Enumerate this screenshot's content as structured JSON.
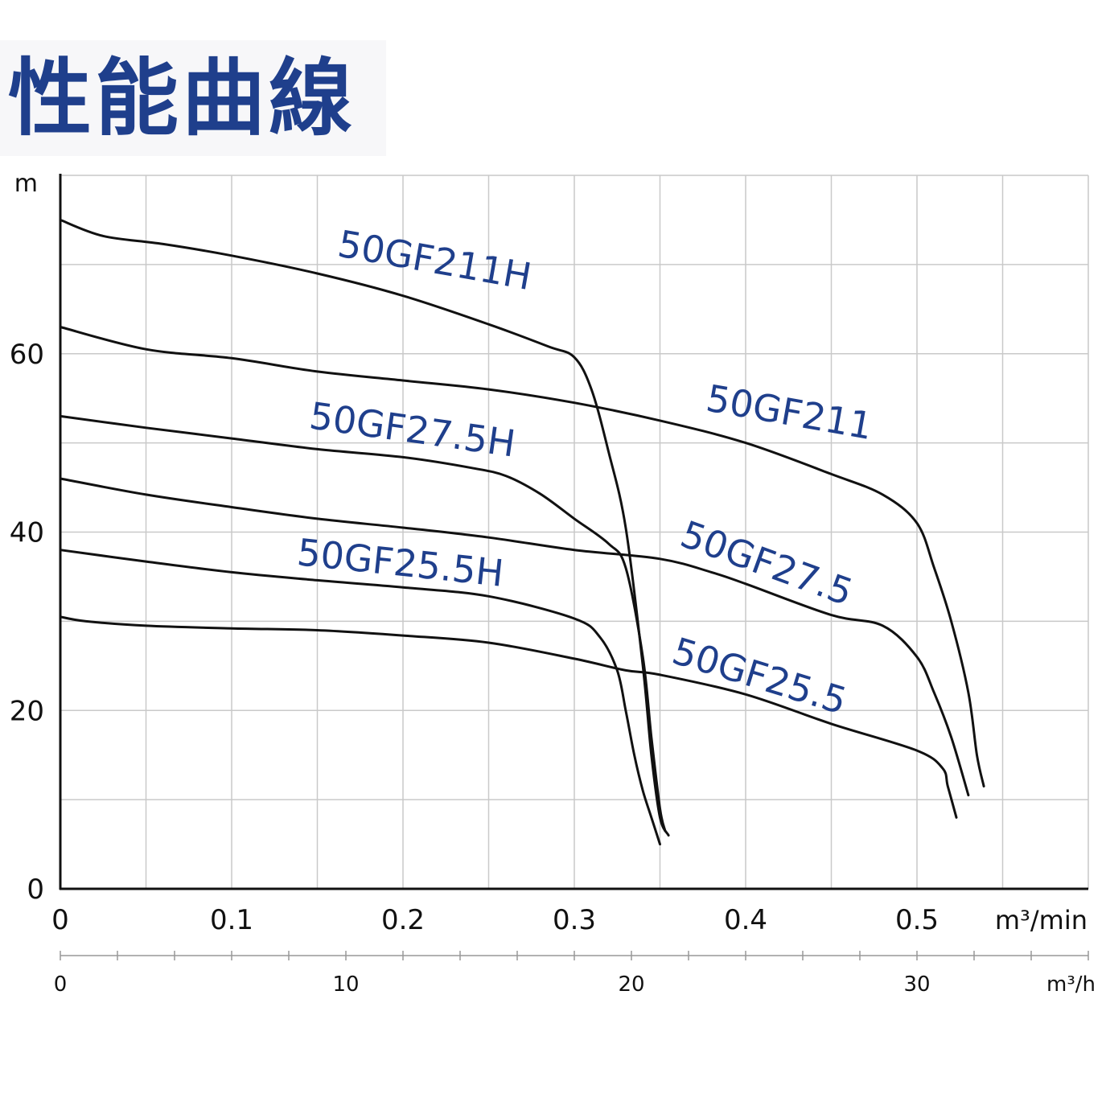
{
  "page": {
    "title": "性能曲線"
  },
  "chart_data": {
    "type": "line",
    "title": "性能曲線",
    "ylabel": "m",
    "xlabel": "m³/min",
    "x2label": "m³/h",
    "xlim": [
      0,
      0.6
    ],
    "ylim": [
      0,
      80
    ],
    "x_ticks": [
      "0",
      "0.1",
      "0.2",
      "0.3",
      "0.4",
      "0.5"
    ],
    "y_ticks": [
      "0",
      "20",
      "40",
      "60"
    ],
    "x2_ticks": [
      "0",
      "10",
      "20",
      "30"
    ],
    "grid": true,
    "colors": {
      "curve": "#111111",
      "label": "#1f3f8c",
      "grid": "#c9c9c9",
      "title": "#1f3f8c"
    },
    "series": [
      {
        "name": "50GF211H",
        "x": [
          0,
          0.025,
          0.06,
          0.1,
          0.15,
          0.2,
          0.25,
          0.285,
          0.3,
          0.31,
          0.32,
          0.33,
          0.34,
          0.345,
          0.35,
          0.355
        ],
        "y": [
          75,
          73.2,
          72.3,
          71,
          69,
          66.5,
          63.3,
          60.8,
          59.6,
          56,
          49,
          40.5,
          25,
          15,
          8,
          6
        ]
      },
      {
        "name": "50GF211",
        "x": [
          0,
          0.05,
          0.1,
          0.15,
          0.2,
          0.25,
          0.3,
          0.35,
          0.4,
          0.45,
          0.48,
          0.5,
          0.51,
          0.52,
          0.53,
          0.535,
          0.539
        ],
        "y": [
          63,
          60.5,
          59.5,
          58,
          57,
          56,
          54.5,
          52.5,
          50,
          46.5,
          44.2,
          41,
          36,
          30,
          22,
          15,
          11.5
        ]
      },
      {
        "name": "50GF27.5H",
        "x": [
          0,
          0.05,
          0.1,
          0.15,
          0.2,
          0.24,
          0.26,
          0.28,
          0.3,
          0.32,
          0.33,
          0.34,
          0.345,
          0.35,
          0.353
        ],
        "y": [
          53,
          51.7,
          50.5,
          49.3,
          48.4,
          47.2,
          46.3,
          44.3,
          41.5,
          38.7,
          36,
          26,
          17,
          9,
          6.5
        ]
      },
      {
        "name": "50GF27.5",
        "x": [
          0,
          0.05,
          0.1,
          0.15,
          0.2,
          0.25,
          0.3,
          0.35,
          0.38,
          0.4,
          0.45,
          0.48,
          0.5,
          0.51,
          0.52,
          0.53
        ],
        "y": [
          46,
          44.2,
          42.8,
          41.5,
          40.5,
          39.4,
          38,
          37,
          35.5,
          34.2,
          30.7,
          29.5,
          26,
          22,
          17,
          10.5
        ]
      },
      {
        "name": "50GF25.5H",
        "x": [
          0,
          0.05,
          0.1,
          0.15,
          0.2,
          0.25,
          0.3,
          0.315,
          0.325,
          0.33,
          0.335,
          0.34,
          0.345,
          0.35
        ],
        "y": [
          38,
          36.7,
          35.5,
          34.6,
          33.8,
          32.8,
          30.3,
          28.2,
          24.5,
          20,
          15,
          11,
          8,
          5
        ]
      },
      {
        "name": "50GF25.5",
        "x": [
          0,
          0.015,
          0.05,
          0.1,
          0.15,
          0.2,
          0.25,
          0.3,
          0.33,
          0.35,
          0.4,
          0.45,
          0.5,
          0.515,
          0.518,
          0.523
        ],
        "y": [
          30.5,
          30,
          29.5,
          29.2,
          29,
          28.4,
          27.6,
          25.8,
          24.5,
          24,
          21.8,
          18.5,
          15.5,
          13.5,
          11.5,
          8
        ]
      }
    ]
  }
}
